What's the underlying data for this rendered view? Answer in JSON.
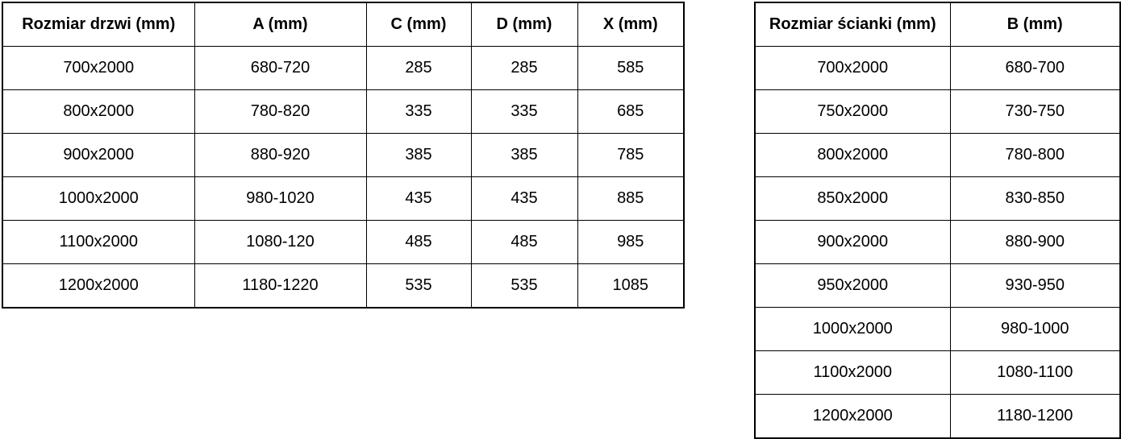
{
  "doors_table": {
    "headers": [
      "Rozmiar drzwi (mm)",
      "A (mm)",
      "C (mm)",
      "D (mm)",
      "X (mm)"
    ],
    "rows": [
      [
        "700x2000",
        "680-720",
        "285",
        "285",
        "585"
      ],
      [
        "800x2000",
        "780-820",
        "335",
        "335",
        "685"
      ],
      [
        "900x2000",
        "880-920",
        "385",
        "385",
        "785"
      ],
      [
        "1000x2000",
        "980-1020",
        "435",
        "435",
        "885"
      ],
      [
        "1100x2000",
        "1080-120",
        "485",
        "485",
        "985"
      ],
      [
        "1200x2000",
        "1180-1220",
        "535",
        "535",
        "1085"
      ]
    ]
  },
  "walls_table": {
    "headers": [
      "Rozmiar ścianki (mm)",
      "B (mm)"
    ],
    "rows": [
      [
        "700x2000",
        "680-700"
      ],
      [
        "750x2000",
        "730-750"
      ],
      [
        "800x2000",
        "780-800"
      ],
      [
        "850x2000",
        "830-850"
      ],
      [
        "900x2000",
        "880-900"
      ],
      [
        "950x2000",
        "930-950"
      ],
      [
        "1000x2000",
        "980-1000"
      ],
      [
        "1100x2000",
        "1080-1100"
      ],
      [
        "1200x2000",
        "1180-1200"
      ]
    ]
  },
  "colors": {
    "border": "#000000",
    "text": "#000000",
    "background": "#ffffff"
  }
}
